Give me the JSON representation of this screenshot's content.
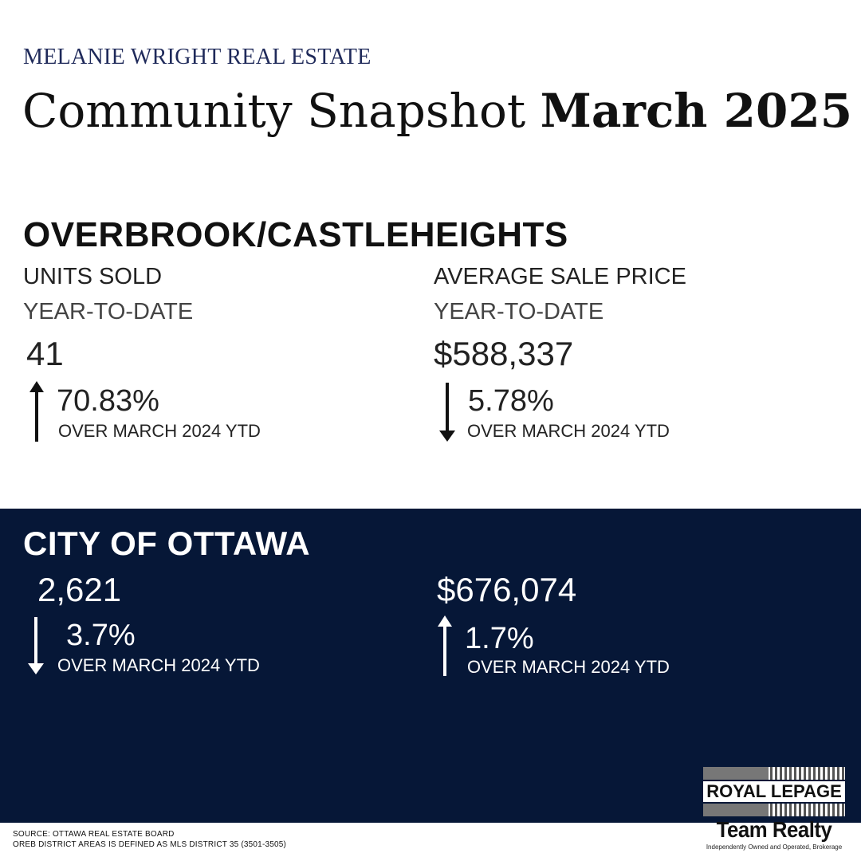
{
  "header": {
    "brand": "MELANIE WRIGHT REAL ESTATE",
    "title_regular": "Community Snapshot",
    "title_bold": "March 2025"
  },
  "community": {
    "name": "OVERBROOK/CASTLEHEIGHTS",
    "units": {
      "label": "UNITS SOLD",
      "period": "YEAR-TO-DATE",
      "value": "41",
      "change_direction": "up",
      "change": "70.83%",
      "comparison": "OVER MARCH 2024 YTD"
    },
    "price": {
      "label": "AVERAGE SALE PRICE",
      "period": "YEAR-TO-DATE",
      "value": "$588,337",
      "change_direction": "down",
      "change": "5.78%",
      "comparison": "OVER MARCH 2024 YTD"
    }
  },
  "city": {
    "name": "CITY OF OTTAWA",
    "units": {
      "value": "2,621",
      "change_direction": "down",
      "change": "3.7%",
      "comparison": "OVER MARCH 2024 YTD"
    },
    "price": {
      "value": "$676,074",
      "change_direction": "up",
      "change": "1.7%",
      "comparison": "OVER MARCH 2024 YTD"
    }
  },
  "footer": {
    "source": "SOURCE: OTTAWA REAL ESTATE BOARD",
    "definition": "OREB DISTRICT AREAS IS DEFINED AS MLS DISTRICT 35 (3501-3505)"
  },
  "logo": {
    "line1": "ROYAL LEPAGE",
    "line2": "Team Realty",
    "tagline": "Independently Owned and Operated, Brokerage"
  },
  "colors": {
    "band": "#061737",
    "brand": "#1f2a5a"
  }
}
